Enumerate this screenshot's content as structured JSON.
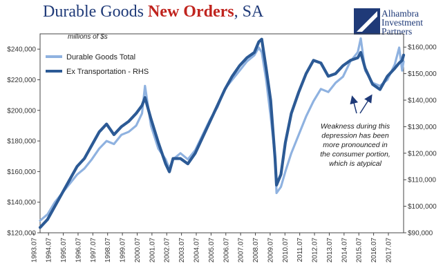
{
  "title": {
    "part1": "Durable Goods ",
    "highlight": "New Orders",
    "part2": ", SA"
  },
  "logo": {
    "text": "Alhambra\nInvestment\nPartners",
    "icon": "alhambra-logo-icon"
  },
  "chart_data": {
    "type": "line",
    "title": "Durable Goods New Orders, SA",
    "units_label": "millions of $s",
    "left_axis": {
      "min": 120000,
      "max": 250000,
      "ticks": [
        "$120,000",
        "$140,000",
        "$160,000",
        "$180,000",
        "$200,000",
        "$220,000",
        "$240,000"
      ],
      "tick_values": [
        120000,
        140000,
        160000,
        180000,
        200000,
        220000,
        240000
      ]
    },
    "right_axis": {
      "min": 90000,
      "max": 165000,
      "ticks": [
        "$90,000",
        "$100,000",
        "$110,000",
        "$120,000",
        "$130,000",
        "$140,000",
        "$150,000",
        "$160,000"
      ],
      "tick_values": [
        90000,
        100000,
        110000,
        120000,
        130000,
        140000,
        150000,
        160000
      ]
    },
    "x_ticks": [
      "1993.07",
      "1994.07",
      "1995.07",
      "1996.07",
      "1997.07",
      "1998.07",
      "1999.07",
      "2000.07",
      "2001.07",
      "2002.07",
      "2003.07",
      "2004.07",
      "2005.07",
      "2006.07",
      "2007.07",
      "2008.07",
      "2009.07",
      "2010.07",
      "2011.07",
      "2012.07",
      "2013.07",
      "2014.07",
      "2015.07",
      "2016.07",
      "2017.07"
    ],
    "legend_position": "top-left",
    "grid": false,
    "x": [
      1993.0,
      1993.5,
      1994.0,
      1994.5,
      1995.0,
      1995.5,
      1996.0,
      1996.5,
      1997.0,
      1997.5,
      1998.0,
      1998.5,
      1999.0,
      1999.5,
      1999.9,
      2000.1,
      2000.5,
      2001.0,
      2001.5,
      2001.75,
      2002.0,
      2002.5,
      2003.0,
      2003.5,
      2004.0,
      2004.5,
      2005.0,
      2005.5,
      2006.0,
      2006.5,
      2007.0,
      2007.5,
      2007.8,
      2008.0,
      2008.3,
      2008.6,
      2008.9,
      2009.0,
      2009.3,
      2009.6,
      2010.0,
      2010.5,
      2011.0,
      2011.5,
      2012.0,
      2012.5,
      2013.0,
      2013.5,
      2014.0,
      2014.5,
      2014.7,
      2015.0,
      2015.5,
      2016.0,
      2016.5,
      2017.0,
      2017.3,
      2017.5,
      2017.6
    ],
    "series": [
      {
        "name": "Durable Goods Total",
        "axis": "left",
        "color": "#8fb2e0",
        "values": [
          128000,
          132000,
          140000,
          146000,
          152000,
          158000,
          162000,
          168000,
          175000,
          180000,
          178000,
          184000,
          186000,
          190000,
          198000,
          216000,
          190000,
          175000,
          168000,
          162000,
          168000,
          172000,
          168000,
          174000,
          184000,
          194000,
          202000,
          214000,
          220000,
          226000,
          232000,
          236000,
          241000,
          238000,
          220000,
          196000,
          170000,
          146000,
          150000,
          160000,
          172000,
          184000,
          196000,
          206000,
          214000,
          212000,
          218000,
          222000,
          232000,
          238000,
          247000,
          226000,
          218000,
          216000,
          220000,
          230000,
          241000,
          226000,
          232000
        ]
      },
      {
        "name": "Ex Transportation - RHS",
        "axis": "right",
        "color": "#2c5a95",
        "values": [
          92000,
          95000,
          100000,
          105000,
          110000,
          115000,
          118000,
          123000,
          128000,
          131000,
          127000,
          130000,
          132000,
          135000,
          138000,
          141000,
          133000,
          124000,
          116000,
          113000,
          118000,
          118000,
          116000,
          120000,
          126000,
          132000,
          138000,
          144000,
          149000,
          153000,
          156000,
          158000,
          162000,
          163000,
          152000,
          140000,
          118000,
          108000,
          112000,
          124000,
          135000,
          143000,
          150000,
          155000,
          154000,
          149000,
          150000,
          153000,
          155000,
          156000,
          158000,
          152000,
          146000,
          144000,
          149000,
          152000,
          154000,
          155000,
          157000
        ]
      }
    ],
    "annotation": "Weakness during this\ndepression has been\nmore pronounced in\nthe consumer portion,\nwhich is atypical"
  }
}
